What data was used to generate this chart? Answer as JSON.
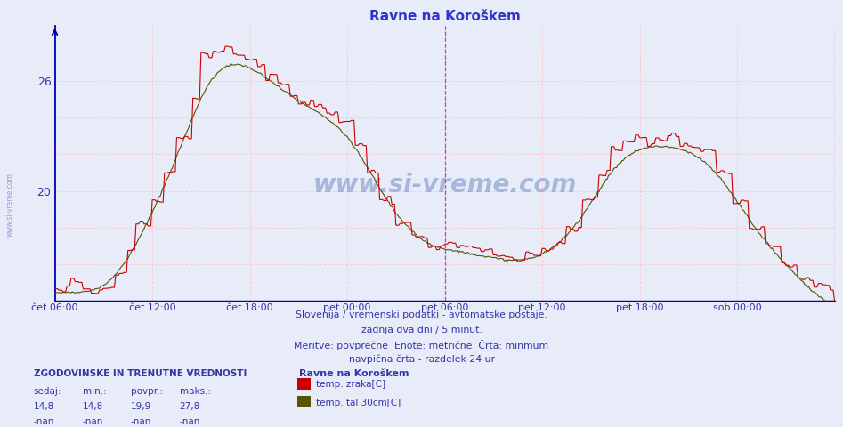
{
  "title": "Ravne na Koroškem",
  "title_color": "#3333cc",
  "bg_color": "#e8ecf8",
  "plot_bg_color": "#e8ecf8",
  "grid_color_h": "#ffbbbb",
  "grid_color_v": "#ffbbbb",
  "spine_color": "#0000bb",
  "ylim": [
    14.0,
    29.0
  ],
  "xlim": [
    0,
    576
  ],
  "xlabel_ticks": [
    0,
    72,
    144,
    216,
    288,
    360,
    432,
    504
  ],
  "xlabel_labels": [
    "čet 06:00",
    "čet 12:00",
    "čet 18:00",
    "pet 00:00",
    "pet 06:00",
    "pet 12:00",
    "pet 18:00",
    "sob 00:00"
  ],
  "ytick_vals": [
    20,
    26
  ],
  "ytick_labels": [
    "20",
    "26"
  ],
  "line1_color": "#cc0000",
  "line2_color": "#555500",
  "watermark_text": "www.si-vreme.com",
  "watermark_color": "#3355aa",
  "footer_text1": "Slovenija / vremenski podatki - avtomatske postaje.",
  "footer_text2": "zadnja dva dni / 5 minut.",
  "footer_text3": "Meritve: povprečne  Enote: metrične  Črta: minmum",
  "footer_text4": "navpična črta - razdelek 24 ur",
  "legend_title": "Ravne na Koroškem",
  "legend_items": [
    "temp. zraka[C]",
    "temp. tal 30cm[C]"
  ],
  "legend_colors": [
    "#cc0000",
    "#555500"
  ],
  "stats_header": "ZGODOVINSKE IN TRENUTNE VREDNOSTI",
  "stats_labels": [
    "sedaj:",
    "min.:",
    "povpr.:",
    "maks.:"
  ],
  "stats_row1": [
    "14,8",
    "14,8",
    "19,9",
    "27,8"
  ],
  "stats_row2": [
    "-nan",
    "-nan",
    "-nan",
    "-nan"
  ],
  "vertical_line_x": 288,
  "vertical_line_color": "#bb44bb",
  "text_color_blue": "#3333aa",
  "side_watermark": "www.si-vreme.com"
}
